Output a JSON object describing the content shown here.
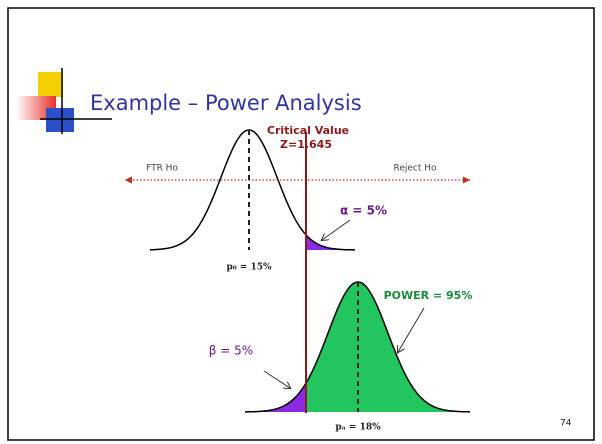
{
  "title": "Example – Power Analysis",
  "diagram": {
    "critical_value": "Critical Value",
    "z_value": "Z=1.645",
    "ftr_label": "FTR Ho",
    "reject_label": "Reject Ho",
    "alpha_label": "α = 5%",
    "p0_label": "p₀ = 15%",
    "power_label": "POWER = 95%",
    "beta_label": "β = 5%",
    "pa_label": "pₐ = 18%"
  },
  "page_number": "74"
}
